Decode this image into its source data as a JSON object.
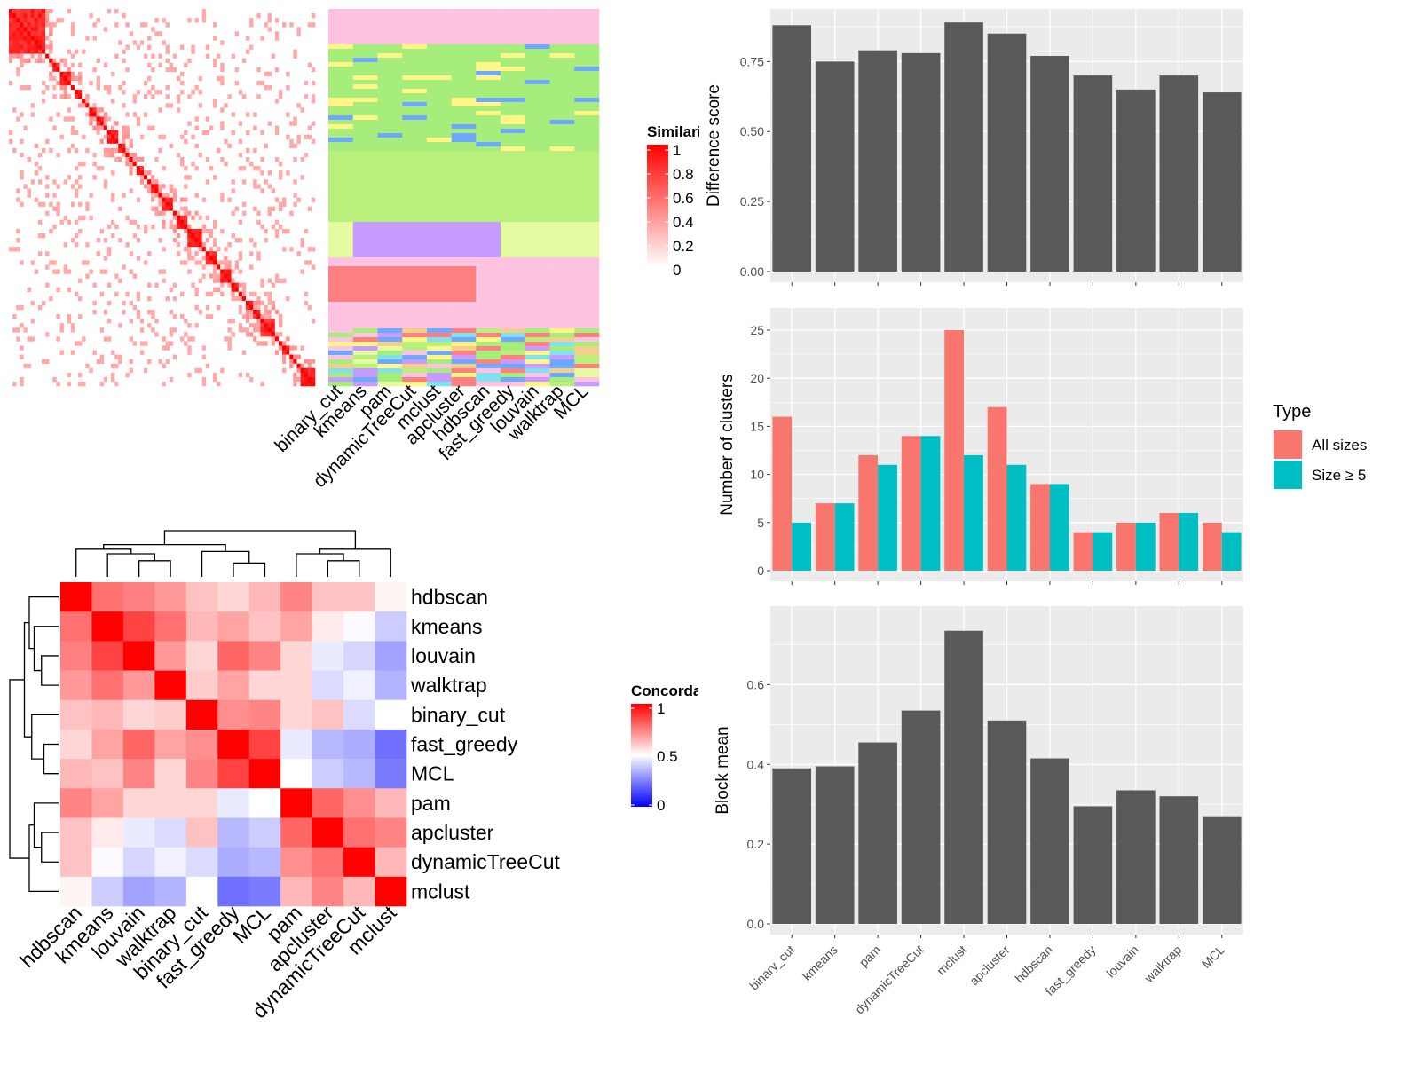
{
  "colors": {
    "panel_bg": "#EBEBEB",
    "grid": "#FFFFFF",
    "bar_dark": "#595959",
    "all_sizes": "#F8766D",
    "size_ge_5": "#00BFC4",
    "sim_high": "#FF0000",
    "sim_low": "#FFFFFF",
    "conc_high": "#FF0000",
    "conc_mid": "#FFFFFF",
    "conc_low": "#0000FF"
  },
  "chart_data": [
    {
      "type": "heatmap",
      "panel": "similarity",
      "legend_title": "Similarity",
      "legend_ticks": [
        "1",
        "0.8",
        "0.6",
        "0.4",
        "0.2",
        "0"
      ],
      "column_labels": [
        "binary_cut",
        "kmeans",
        "pam",
        "dynamicTreeCut",
        "mclust",
        "apcluster",
        "hdbscan",
        "fast_greedy",
        "louvain",
        "walktrap",
        "MCL"
      ],
      "diagonal_blocks": [
        10,
        1,
        1,
        2,
        3,
        1,
        2,
        1,
        1,
        2,
        2,
        1,
        3,
        2,
        1,
        1,
        1,
        2,
        1,
        1,
        2,
        1,
        3,
        1,
        3,
        4,
        1,
        3,
        1,
        3,
        2,
        1,
        1,
        2,
        2,
        4,
        1,
        1,
        2,
        1,
        1,
        1,
        4
      ]
    },
    {
      "type": "bar",
      "panel": "difference",
      "ylabel": "Difference score",
      "categories": [
        "binary_cut",
        "kmeans",
        "pam",
        "dynamicTreeCut",
        "mclust",
        "apcluster",
        "hdbscan",
        "fast_greedy",
        "louvain",
        "walktrap",
        "MCL"
      ],
      "values": [
        0.88,
        0.75,
        0.79,
        0.78,
        0.89,
        0.85,
        0.77,
        0.7,
        0.65,
        0.7,
        0.64
      ],
      "ylim": [
        0,
        0.9
      ],
      "yticks": [
        "0.00",
        "0.25",
        "0.50",
        "0.75"
      ],
      "grid": true
    },
    {
      "type": "bar",
      "panel": "nclusters",
      "ylabel": "Number of clusters",
      "categories": [
        "binary_cut",
        "kmeans",
        "pam",
        "dynamicTreeCut",
        "mclust",
        "apcluster",
        "hdbscan",
        "fast_greedy",
        "louvain",
        "walktrap",
        "MCL"
      ],
      "series": [
        {
          "name": "All sizes",
          "values": [
            16,
            7,
            12,
            14,
            25,
            17,
            9,
            4,
            5,
            6,
            5
          ]
        },
        {
          "name": "Size ≥ 5",
          "values": [
            5,
            7,
            11,
            14,
            12,
            11,
            9,
            4,
            5,
            6,
            4
          ]
        }
      ],
      "ylim": [
        0,
        26.2
      ],
      "yticks": [
        "0",
        "5",
        "10",
        "15",
        "20",
        "25"
      ],
      "legend": {
        "title": "Type",
        "position": "right"
      },
      "grid": true
    },
    {
      "type": "bar",
      "panel": "blockmean",
      "ylabel": "Block mean",
      "categories": [
        "binary_cut",
        "kmeans",
        "pam",
        "dynamicTreeCut",
        "mclust",
        "apcluster",
        "hdbscan",
        "fast_greedy",
        "louvain",
        "walktrap",
        "MCL"
      ],
      "values": [
        0.39,
        0.395,
        0.455,
        0.535,
        0.735,
        0.51,
        0.415,
        0.295,
        0.335,
        0.32,
        0.27
      ],
      "ylim": [
        0,
        0.77
      ],
      "yticks": [
        "0.0",
        "0.2",
        "0.4",
        "0.6"
      ],
      "grid": true
    },
    {
      "type": "heatmap",
      "panel": "concordance",
      "legend_title": "Concordance",
      "legend_ticks": [
        "1",
        "0.5",
        "0"
      ],
      "rows": [
        "hdbscan",
        "kmeans",
        "louvain",
        "walktrap",
        "binary_cut",
        "fast_greedy",
        "MCL",
        "pam",
        "apcluster",
        "dynamicTreeCut",
        "mclust"
      ],
      "columns": [
        "hdbscan",
        "kmeans",
        "louvain",
        "walktrap",
        "binary_cut",
        "fast_greedy",
        "MCL",
        "pam",
        "apcluster",
        "dynamicTreeCut",
        "mclust"
      ],
      "values": [
        [
          1.0,
          0.78,
          0.75,
          0.7,
          0.62,
          0.58,
          0.64,
          0.74,
          0.62,
          0.62,
          0.52
        ],
        [
          0.78,
          1.0,
          0.87,
          0.78,
          0.64,
          0.68,
          0.62,
          0.68,
          0.54,
          0.49,
          0.4
        ],
        [
          0.75,
          0.87,
          1.0,
          0.7,
          0.58,
          0.8,
          0.74,
          0.58,
          0.46,
          0.42,
          0.32
        ],
        [
          0.7,
          0.78,
          0.7,
          1.0,
          0.6,
          0.68,
          0.58,
          0.58,
          0.43,
          0.47,
          0.35
        ],
        [
          0.62,
          0.64,
          0.58,
          0.6,
          1.0,
          0.72,
          0.74,
          0.58,
          0.62,
          0.43,
          0.5
        ],
        [
          0.58,
          0.68,
          0.8,
          0.68,
          0.72,
          1.0,
          0.87,
          0.46,
          0.36,
          0.34,
          0.22
        ],
        [
          0.64,
          0.62,
          0.74,
          0.58,
          0.74,
          0.87,
          1.0,
          0.5,
          0.4,
          0.36,
          0.24
        ],
        [
          0.74,
          0.68,
          0.58,
          0.58,
          0.58,
          0.46,
          0.5,
          1.0,
          0.8,
          0.72,
          0.64
        ],
        [
          0.62,
          0.54,
          0.46,
          0.43,
          0.62,
          0.36,
          0.4,
          0.8,
          1.0,
          0.78,
          0.74
        ],
        [
          0.62,
          0.49,
          0.42,
          0.47,
          0.43,
          0.34,
          0.36,
          0.72,
          0.78,
          1.0,
          0.64
        ],
        [
          0.52,
          0.4,
          0.32,
          0.35,
          0.5,
          0.22,
          0.24,
          0.64,
          0.74,
          0.64,
          1.0
        ]
      ]
    }
  ]
}
